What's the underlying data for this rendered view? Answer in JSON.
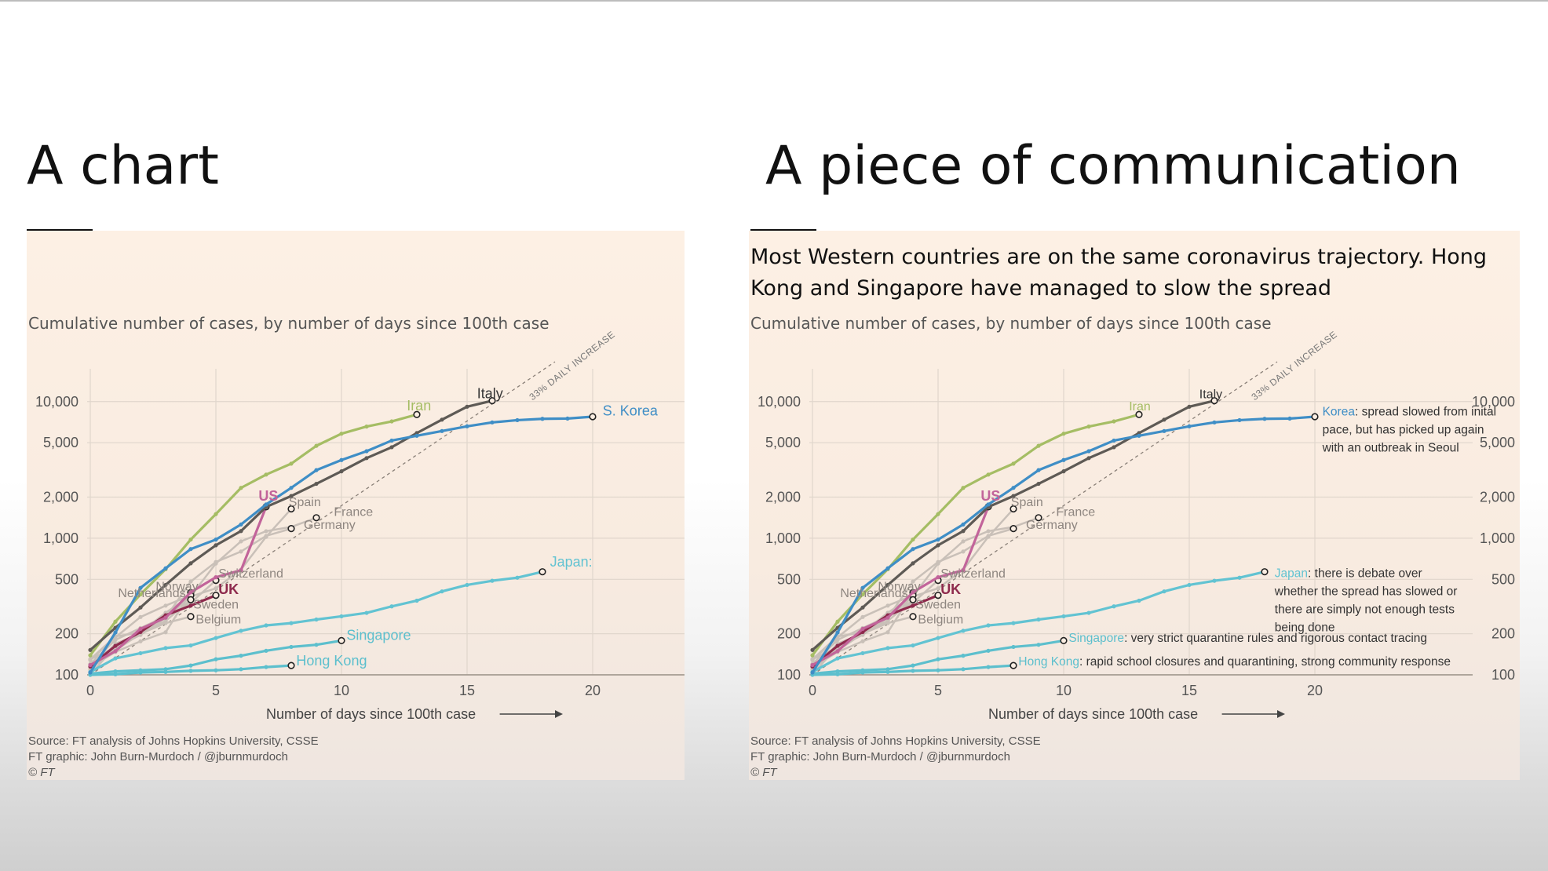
{
  "slide": {
    "left_title": "A chart",
    "right_title": "A piece of communication"
  },
  "colors": {
    "iran": "#a5bd64",
    "italy": "#5e5a55",
    "korea": "#3f8ec6",
    "us": "#c2649a",
    "uk": "#8e2a4d",
    "japan": "#62c3d2",
    "singapore": "#5cbfcd",
    "hongkong": "#5cbfcd",
    "others": "#c9c0b8",
    "grid": "#e0d6cc",
    "panel_bg": "#fbeee3"
  },
  "right_panel": {
    "headline": "Most Western countries are on the same coronavirus trajectory. Hong Kong and Singapore have managed to slow the spread",
    "annotations": {
      "korea_name": "Korea",
      "korea_text": ": spread slowed from inital pace, but has picked up again with an outbreak in Seoul",
      "japan_name": "Japan",
      "japan_text": ": there is debate over whether the spread has slowed or there are simply not enough tests being done",
      "singapore_name": "Singapore",
      "singapore_text": ": very strict quarantine rules and rigorous contact tracing",
      "hongkong_name": "Hong Kong",
      "hongkong_text": ": rapid school closures and quarantining, strong community response"
    }
  },
  "footer": {
    "source": "Source: FT analysis of Johns Hopkins University, CSSE",
    "graphic": "FT graphic: John Burn-Murdoch / @jburnmurdoch",
    "copyright": "© FT"
  },
  "chart_data": [
    {
      "type": "line",
      "subtitle": "Cumulative number of cases, by number of days since 100th case",
      "xlabel": "Number of days since 100th case",
      "ylabel": "",
      "y_scale": "log",
      "xlim": [
        0,
        24
      ],
      "ylim": [
        100,
        12000
      ],
      "x_ticks": [
        0,
        5,
        10,
        15,
        20
      ],
      "y_ticks": [
        100,
        200,
        500,
        1000,
        2000,
        5000,
        10000
      ],
      "y_tick_labels": [
        "100",
        "200",
        "500",
        "1,000",
        "2,000",
        "5,000",
        "10,000"
      ],
      "reference_line": {
        "label": "33% DAILY INCREASE",
        "daily_growth": 0.33
      },
      "series": [
        {
          "name": "Italy",
          "x": [
            0,
            1,
            2,
            3,
            4,
            5,
            6,
            7,
            8,
            9,
            10,
            11,
            12,
            13,
            14,
            15,
            16
          ],
          "y": [
            152,
            221,
            311,
            455,
            655,
            888,
            1128,
            1694,
            2036,
            2502,
            3089,
            3858,
            4636,
            5883,
            7375,
            9172,
            10149
          ]
        },
        {
          "name": "Iran",
          "x": [
            0,
            1,
            2,
            3,
            4,
            5,
            6,
            7,
            8,
            9,
            10,
            11,
            12,
            13
          ],
          "y": [
            139,
            245,
            388,
            593,
            978,
            1501,
            2336,
            2922,
            3513,
            4747,
            5823,
            6566,
            7161,
            8042
          ]
        },
        {
          "name": "S. Korea",
          "x": [
            0,
            1,
            2,
            3,
            4,
            5,
            6,
            7,
            8,
            9,
            10,
            11,
            12,
            13,
            14,
            15,
            16,
            17,
            18,
            19,
            20
          ],
          "y": [
            104,
            204,
            433,
            602,
            833,
            977,
            1261,
            1766,
            2337,
            3150,
            3736,
            4335,
            5186,
            5621,
            6088,
            6593,
            7041,
            7314,
            7478,
            7513,
            7755
          ]
        },
        {
          "name": "US",
          "x": [
            0,
            1,
            2,
            3,
            4,
            5,
            6,
            7
          ],
          "y": [
            118,
            149,
            217,
            262,
            402,
            518,
            583,
            1697
          ]
        },
        {
          "name": "Spain",
          "x": [
            0,
            1,
            2,
            3,
            4,
            5,
            6,
            7,
            8
          ],
          "y": [
            114,
            151,
            200,
            261,
            374,
            430,
            589,
            1024,
            1639
          ]
        },
        {
          "name": "France",
          "x": [
            0,
            1,
            2,
            3,
            4,
            5,
            6,
            7,
            8,
            9
          ],
          "y": [
            130,
            191,
            204,
            285,
            377,
            653,
            949,
            1126,
            1209,
            1412
          ]
        },
        {
          "name": "Germany",
          "x": [
            0,
            1,
            2,
            3,
            4,
            5,
            6,
            7,
            8
          ],
          "y": [
            130,
            159,
            196,
            262,
            482,
            670,
            799,
            1040,
            1176
          ]
        },
        {
          "name": "Switzerland",
          "x": [
            0,
            1,
            2,
            3,
            4,
            5
          ],
          "y": [
            120,
            180,
            220,
            268,
            337,
            491
          ]
        },
        {
          "name": "Norway",
          "x": [
            0,
            1,
            2,
            3,
            4
          ],
          "y": [
            113,
            147,
            176,
            205,
            400
          ]
        },
        {
          "name": "Netherlands",
          "x": [
            0,
            1,
            2,
            3,
            4
          ],
          "y": [
            128,
            188,
            265,
            321,
            382
          ]
        },
        {
          "name": "Sweden",
          "x": [
            0,
            1,
            2,
            3,
            4
          ],
          "y": [
            101,
            161,
            203,
            248,
            355
          ]
        },
        {
          "name": "Belgium",
          "x": [
            0,
            1,
            2,
            3,
            4
          ],
          "y": [
            109,
            169,
            200,
            239,
            267
          ]
        },
        {
          "name": "UK",
          "x": [
            0,
            1,
            2,
            3,
            4,
            5
          ],
          "y": [
            115,
            163,
            206,
            273,
            321,
            382
          ]
        },
        {
          "name": "Japan",
          "x": [
            0,
            1,
            2,
            3,
            4,
            5,
            6,
            7,
            8,
            9,
            10,
            11,
            12,
            13,
            14,
            15,
            16,
            17,
            18
          ],
          "y": [
            105,
            132,
            144,
            157,
            164,
            186,
            210,
            230,
            239,
            254,
            268,
            284,
            317,
            349,
            408,
            455,
            488,
            514,
            568
          ]
        },
        {
          "name": "Singapore",
          "x": [
            0,
            1,
            2,
            3,
            4,
            5,
            6,
            7,
            8,
            9,
            10
          ],
          "y": [
            102,
            106,
            108,
            110,
            117,
            130,
            138,
            150,
            160,
            166,
            178
          ]
        },
        {
          "name": "Hong Kong",
          "x": [
            0,
            1,
            2,
            3,
            4,
            5,
            6,
            7,
            8
          ],
          "y": [
            100,
            101,
            104,
            105,
            107,
            108,
            110,
            114,
            117
          ]
        }
      ]
    },
    {
      "type": "line",
      "subtitle": "Cumulative number of cases, by number of days since 100th case",
      "xlabel": "Number of days since 100th case",
      "y_scale": "log",
      "same_series_as": "chart 1"
    }
  ]
}
